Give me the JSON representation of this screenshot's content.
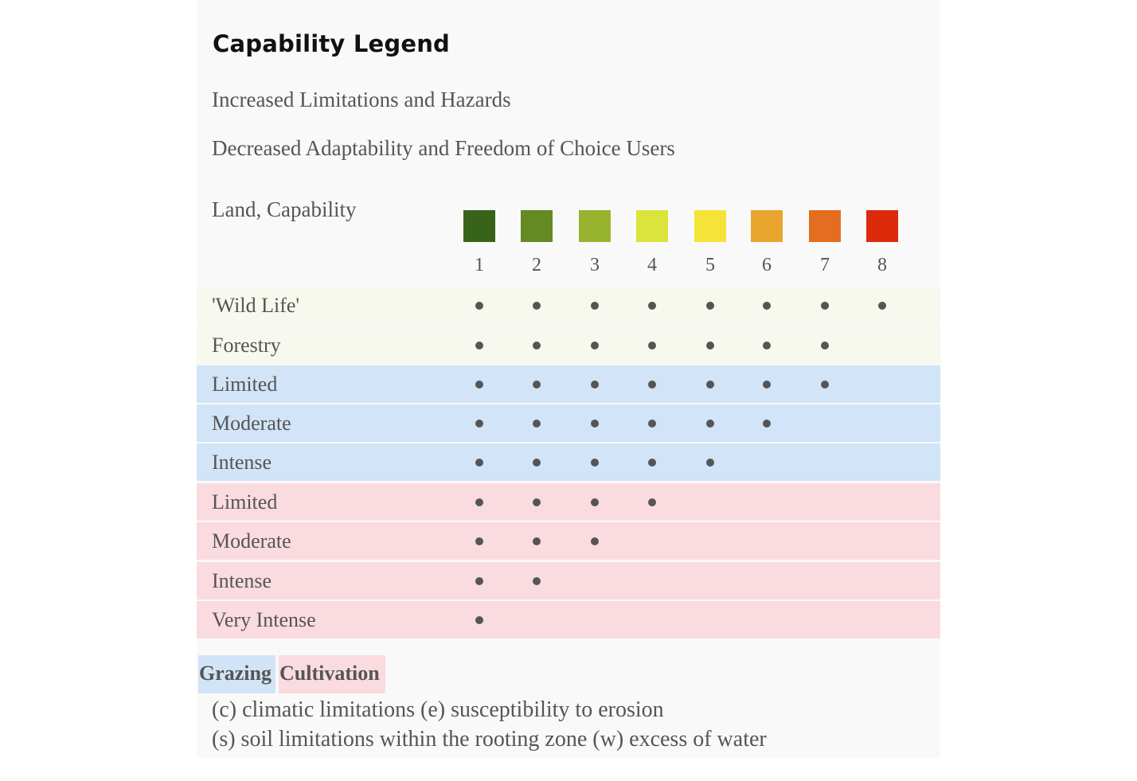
{
  "legend": {
    "title": "Capability Legend",
    "subtitle_1": "Increased Limitations and Hazards",
    "subtitle_2": "Decreased Adaptability and Freedom of Choice Users",
    "land_label": "Land, Capability"
  },
  "classes": [
    {
      "number": "1",
      "color": "#37641a"
    },
    {
      "number": "2",
      "color": "#638a23"
    },
    {
      "number": "3",
      "color": "#98b32e"
    },
    {
      "number": "4",
      "color": "#dae43b"
    },
    {
      "number": "5",
      "color": "#f6e337"
    },
    {
      "number": "6",
      "color": "#e8a42c"
    },
    {
      "number": "7",
      "color": "#e46d1f"
    },
    {
      "number": "8",
      "color": "#dc2a0b"
    }
  ],
  "rows": [
    {
      "label": "'Wild Life'",
      "group": "wild",
      "max_class": 8
    },
    {
      "label": "Forestry",
      "group": "wild",
      "max_class": 7
    },
    {
      "label": "Limited",
      "group": "grazing",
      "max_class": 7
    },
    {
      "label": "Moderate",
      "group": "grazing",
      "max_class": 6
    },
    {
      "label": "Intense",
      "group": "grazing",
      "max_class": 5
    },
    {
      "label": "Limited",
      "group": "cultivation",
      "max_class": 4
    },
    {
      "label": "Moderate",
      "group": "cultivation",
      "max_class": 3
    },
    {
      "label": "Intense",
      "group": "cultivation",
      "max_class": 2
    },
    {
      "label": "Very Intense",
      "group": "cultivation",
      "max_class": 1
    }
  ],
  "key": {
    "grazing": "Grazing",
    "cultivation": "Cultivation",
    "colors": {
      "wild": "#f7f8ee",
      "grazing": "#d2e4f7",
      "cultivation": "#fadbe0"
    }
  },
  "notes": {
    "line_1": "(c) climatic limitations (e) susceptibility to erosion",
    "line_2": "(s) soil limitations within the rooting zone (w) excess of water"
  }
}
